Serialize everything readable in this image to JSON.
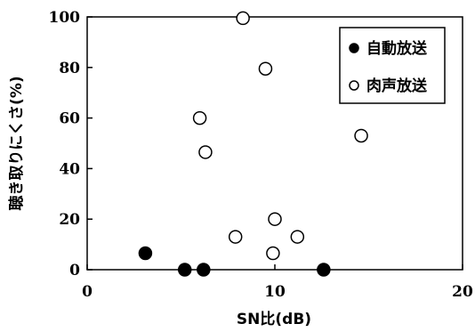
{
  "chart_data": {
    "type": "scatter",
    "title": "",
    "xlabel": "SN比(dB)",
    "ylabel": "聴き取りにくさ(%)",
    "xlim": [
      0,
      20
    ],
    "ylim": [
      0,
      100
    ],
    "xticks": [
      0,
      10,
      20
    ],
    "yticks": [
      0,
      20,
      40,
      60,
      80,
      100
    ],
    "grid": false,
    "legend_position": "top-right",
    "series": [
      {
        "name": "自動放送",
        "marker": "filled-circle",
        "color": "#000000",
        "points": [
          {
            "x": 3.1,
            "y": 6.5
          },
          {
            "x": 5.2,
            "y": 0
          },
          {
            "x": 6.2,
            "y": 0
          },
          {
            "x": 12.6,
            "y": 0
          }
        ]
      },
      {
        "name": "肉声放送",
        "marker": "open-circle",
        "color": "#000000",
        "points": [
          {
            "x": 8.3,
            "y": 99.5
          },
          {
            "x": 9.5,
            "y": 79.5
          },
          {
            "x": 6.0,
            "y": 60
          },
          {
            "x": 6.3,
            "y": 46.5
          },
          {
            "x": 14.6,
            "y": 53
          },
          {
            "x": 10.0,
            "y": 20
          },
          {
            "x": 7.9,
            "y": 13
          },
          {
            "x": 11.2,
            "y": 13
          },
          {
            "x": 9.9,
            "y": 6.5
          }
        ]
      }
    ]
  }
}
